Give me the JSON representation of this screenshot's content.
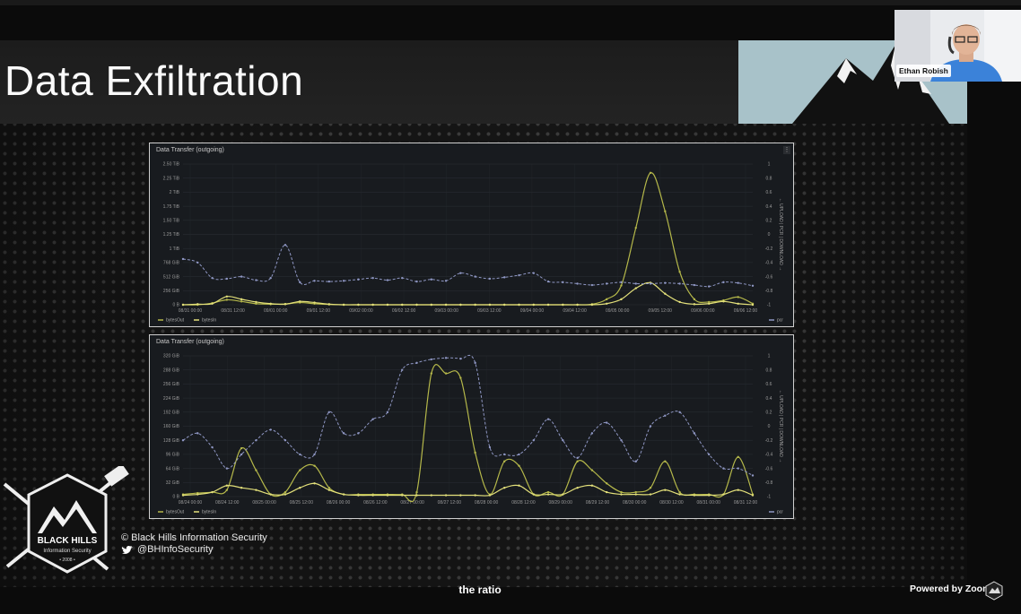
{
  "slide": {
    "title": "Data Exfiltration",
    "copyright": "© Black Hills Information Security",
    "twitter": "@BHInfoSecurity",
    "logo_lines": [
      "BLACK HILLS",
      "Information Security",
      "• 2008 •"
    ]
  },
  "webcam": {
    "name": "Ethan Robish"
  },
  "caption": "the ratio",
  "powered_by": "Powered by Zoom",
  "colors": {
    "bytesOut": "#b5b84a",
    "bytesIn": "#e3e07a",
    "pcr": "#8f97c4"
  },
  "chart_data": [
    {
      "type": "line",
      "title": "Data Transfer (outgoing)",
      "menu_icon": "⋮",
      "x_labels": [
        "08/31 00:00",
        "08/31 12:00",
        "09/01 00:00",
        "09/01 12:00",
        "09/02 00:00",
        "09/02 12:00",
        "09/03 00:00",
        "09/03 12:00",
        "09/04 00:00",
        "09/04 12:00",
        "09/05 00:00",
        "09/05 12:00",
        "09/06 00:00",
        "09/06 12:00"
      ],
      "y_left_ticks": [
        "0 B",
        "256 GiB",
        "512 GiB",
        "768 GiB",
        "1 TiB",
        "1.25 TiB",
        "1.50 TiB",
        "1.75 TiB",
        "2 TiB",
        "2.25 TiB",
        "2.50 TiB"
      ],
      "y_left_max_gib": 2560,
      "y_right_ticks": [
        "-1",
        "-0.8",
        "-0.6",
        "-0.4",
        "-0.2",
        "0",
        "0.2",
        "0.4",
        "0.6",
        "0.8",
        "1"
      ],
      "y_right_label": "← UPLOAD | PCR | DOWNLOAD →",
      "legend_left": [
        "bytesOut",
        "bytesIn"
      ],
      "legend_right": [
        "pcr"
      ],
      "series": [
        {
          "name": "bytesOut",
          "axis": "left",
          "values": [
            0,
            0,
            30,
            90,
            60,
            20,
            10,
            15,
            40,
            20,
            5,
            0,
            0,
            0,
            0,
            0,
            0,
            0,
            0,
            0,
            0,
            0,
            0,
            0,
            0,
            0,
            0,
            0,
            10,
            100,
            350,
            1400,
            2400,
            1700,
            600,
            100,
            50,
            80,
            140,
            20
          ]
        },
        {
          "name": "bytesIn",
          "axis": "left",
          "values": [
            0,
            10,
            20,
            150,
            100,
            50,
            20,
            10,
            60,
            40,
            10,
            0,
            0,
            0,
            0,
            0,
            0,
            0,
            0,
            0,
            0,
            0,
            0,
            0,
            0,
            0,
            0,
            0,
            0,
            20,
            100,
            300,
            400,
            200,
            50,
            10,
            20,
            60,
            20,
            0
          ]
        },
        {
          "name": "pcr",
          "axis": "right",
          "values": [
            -0.35,
            -0.4,
            -0.62,
            -0.63,
            -0.6,
            -0.65,
            -0.62,
            -0.15,
            -0.68,
            -0.66,
            -0.67,
            -0.66,
            -0.64,
            -0.62,
            -0.65,
            -0.62,
            -0.67,
            -0.64,
            -0.66,
            -0.55,
            -0.6,
            -0.63,
            -0.61,
            -0.58,
            -0.55,
            -0.67,
            -0.68,
            -0.7,
            -0.72,
            -0.7,
            -0.68,
            -0.7,
            -0.7,
            -0.69,
            -0.7,
            -0.72,
            -0.74,
            -0.68,
            -0.69,
            -0.73
          ]
        }
      ]
    },
    {
      "type": "line",
      "title": "Data Transfer (outgoing)",
      "x_labels": [
        "08/24 00:00",
        "08/24 12:00",
        "08/25 00:00",
        "08/25 12:00",
        "08/26 00:00",
        "08/26 12:00",
        "08/27 00:00",
        "08/27 12:00",
        "08/28 00:00",
        "08/28 12:00",
        "08/29 00:00",
        "08/29 12:00",
        "08/30 00:00",
        "08/30 12:00",
        "08/31 00:00",
        "08/31 12:00"
      ],
      "y_left_ticks": [
        "0 B",
        "32 GiB",
        "64 GiB",
        "96 GiB",
        "128 GiB",
        "160 GiB",
        "192 GiB",
        "224 GiB",
        "256 GiB",
        "288 GiB",
        "320 GiB"
      ],
      "y_left_max_gib": 320,
      "y_right_ticks": [
        "-1",
        "-0.8",
        "-0.6",
        "-0.4",
        "-0.2",
        "0",
        "0.2",
        "0.4",
        "0.6",
        "0.8",
        "1"
      ],
      "y_right_label": "← UPLOAD | PCR | DOWNLOAD →",
      "legend_left": [
        "bytesOut",
        "bytesIn"
      ],
      "legend_right": [
        "pcr"
      ],
      "series": [
        {
          "name": "bytesOut",
          "axis": "left",
          "values": [
            5,
            8,
            10,
            15,
            110,
            60,
            5,
            10,
            60,
            70,
            20,
            5,
            5,
            5,
            5,
            5,
            10,
            280,
            280,
            270,
            100,
            5,
            80,
            70,
            5,
            10,
            5,
            80,
            60,
            30,
            10,
            10,
            20,
            80,
            10,
            5,
            5,
            5,
            90,
            5
          ]
        },
        {
          "name": "bytesIn",
          "axis": "left",
          "values": [
            3,
            5,
            10,
            25,
            20,
            15,
            5,
            5,
            20,
            30,
            15,
            5,
            3,
            3,
            3,
            3,
            3,
            3,
            3,
            3,
            3,
            3,
            20,
            25,
            5,
            5,
            5,
            20,
            25,
            10,
            5,
            5,
            5,
            15,
            5,
            3,
            3,
            5,
            15,
            3
          ]
        },
        {
          "name": "pcr",
          "axis": "right",
          "values": [
            -0.2,
            -0.1,
            -0.3,
            -0.6,
            -0.4,
            -0.2,
            -0.05,
            -0.2,
            -0.4,
            -0.4,
            0.2,
            -0.1,
            -0.1,
            0.1,
            0.2,
            0.8,
            0.9,
            0.95,
            0.97,
            0.96,
            0.9,
            -0.3,
            -0.4,
            -0.4,
            -0.2,
            0.1,
            -0.2,
            -0.45,
            -0.1,
            0.05,
            -0.2,
            -0.5,
            0.0,
            0.15,
            0.2,
            -0.1,
            -0.4,
            -0.6,
            -0.6,
            -0.7
          ]
        }
      ]
    }
  ]
}
